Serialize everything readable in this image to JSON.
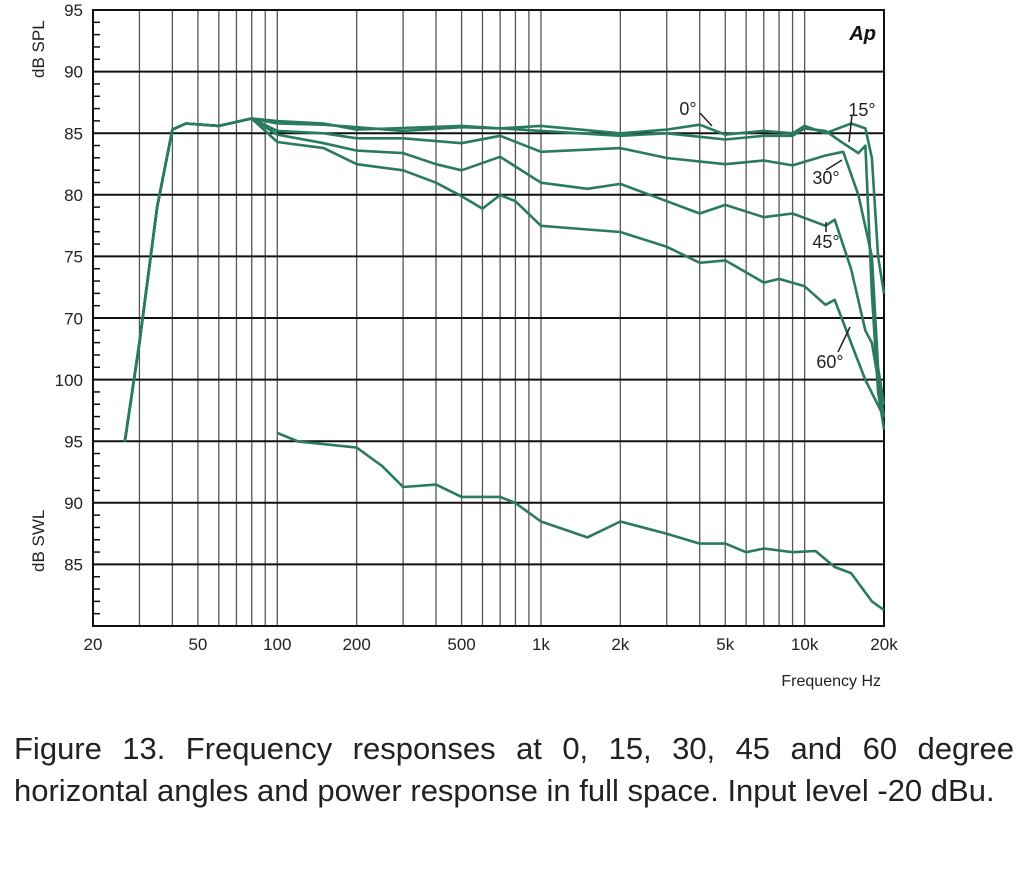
{
  "chart_data": {
    "type": "line",
    "logo": "Ap",
    "xlabel": "Frequency Hz",
    "x_scale": "log",
    "xlim": [
      20,
      20000
    ],
    "x_ticks": [
      {
        "v": 20,
        "label": "20"
      },
      {
        "v": 50,
        "label": "50"
      },
      {
        "v": 100,
        "label": "100"
      },
      {
        "v": 200,
        "label": "200"
      },
      {
        "v": 500,
        "label": "500"
      },
      {
        "v": 1000,
        "label": "1k"
      },
      {
        "v": 2000,
        "label": "2k"
      },
      {
        "v": 5000,
        "label": "5k"
      },
      {
        "v": 10000,
        "label": "10k"
      },
      {
        "v": 20000,
        "label": "20k"
      }
    ],
    "y_upper": {
      "label": "dB SPL",
      "range": [
        65,
        95
      ],
      "ticks": [
        {
          "v": 95,
          "label": "95"
        },
        {
          "v": 90,
          "label": "90"
        },
        {
          "v": 85,
          "label": "85"
        },
        {
          "v": 80,
          "label": "80"
        },
        {
          "v": 75,
          "label": "75"
        },
        {
          "v": 70,
          "label": "70"
        }
      ]
    },
    "y_lower": {
      "label": "dB SWL",
      "range": [
        80,
        100
      ],
      "ticks": [
        {
          "v": 100,
          "label": "100"
        },
        {
          "v": 95,
          "label": "95"
        },
        {
          "v": 90,
          "label": "90"
        },
        {
          "v": 85,
          "label": "85"
        }
      ]
    },
    "grid": true,
    "line_color": "#2a7a62",
    "series": [
      {
        "name": "0°",
        "axis": "upper",
        "x": [
          26.4,
          30,
          35,
          40,
          45,
          60,
          80,
          100,
          150,
          200,
          300,
          500,
          700,
          1000,
          2000,
          3000,
          4000,
          5000,
          7000,
          9000,
          10000,
          12000,
          15000,
          17000,
          18000,
          19000,
          20000
        ],
        "y": [
          60,
          68,
          79,
          85.3,
          85.8,
          85.6,
          86.2,
          85.8,
          85.7,
          85.5,
          85.2,
          85.5,
          85.4,
          85.6,
          85.0,
          85.3,
          85.7,
          84.9,
          85.2,
          85.0,
          85.6,
          85.0,
          85.8,
          85.4,
          83,
          75,
          72
        ]
      },
      {
        "name": "15°",
        "axis": "upper",
        "x": [
          26.4,
          30,
          35,
          40,
          45,
          60,
          80,
          100,
          150,
          200,
          500,
          1000,
          2000,
          3000,
          5000,
          7000,
          9000,
          10000,
          12000,
          14000,
          16000,
          17000,
          18000,
          19000,
          20000
        ],
        "y": [
          60,
          68,
          79,
          85.3,
          85.8,
          85.6,
          86.2,
          86.0,
          85.8,
          85.3,
          85.6,
          85.2,
          84.8,
          85.0,
          84.5,
          84.8,
          84.8,
          85.4,
          85.2,
          84.2,
          83.4,
          84,
          72,
          64,
          61
        ]
      },
      {
        "name": "30°",
        "axis": "upper",
        "x": [
          26.4,
          30,
          35,
          40,
          45,
          60,
          80,
          100,
          150,
          200,
          300,
          500,
          700,
          1000,
          2000,
          3000,
          5000,
          7000,
          9000,
          12000,
          14000,
          16000,
          18000,
          19000,
          20000
        ],
        "y": [
          60,
          68,
          79,
          85.3,
          85.8,
          85.6,
          86.2,
          85.2,
          85.0,
          84.6,
          84.6,
          84.2,
          84.8,
          83.5,
          83.8,
          83.0,
          82.5,
          82.8,
          82.4,
          83.2,
          83.5,
          80,
          75,
          66,
          63
        ]
      },
      {
        "name": "45°",
        "axis": "upper",
        "x": [
          26.4,
          30,
          35,
          40,
          45,
          60,
          80,
          100,
          150,
          200,
          300,
          400,
          500,
          700,
          1000,
          1500,
          2000,
          3000,
          4000,
          5000,
          7000,
          9000,
          12000,
          13000,
          15000,
          17000,
          18000,
          19000,
          20000
        ],
        "y": [
          60,
          68,
          79,
          85.3,
          85.8,
          85.6,
          86.2,
          84.9,
          84.2,
          83.6,
          83.4,
          82.5,
          82.0,
          83.1,
          81.0,
          80.5,
          80.9,
          79.5,
          78.5,
          79.2,
          78.2,
          78.5,
          77.5,
          78,
          74,
          69,
          68,
          65,
          62
        ]
      },
      {
        "name": "60°",
        "axis": "upper",
        "x": [
          26.4,
          30,
          35,
          40,
          45,
          60,
          80,
          100,
          150,
          200,
          300,
          400,
          500,
          600,
          700,
          800,
          1000,
          1500,
          2000,
          3000,
          4000,
          5000,
          7000,
          8000,
          10000,
          12000,
          13000,
          15000,
          17000,
          20000
        ],
        "y": [
          60,
          68,
          79,
          85.3,
          85.8,
          85.6,
          86.2,
          84.3,
          83.8,
          82.5,
          82.0,
          81.0,
          79.9,
          78.9,
          80.0,
          79.5,
          77.5,
          77.2,
          77.0,
          75.8,
          74.5,
          74.7,
          72.9,
          73.2,
          72.6,
          71.1,
          71.5,
          68,
          65,
          62
        ]
      },
      {
        "name": "Power response",
        "axis": "lower",
        "x": [
          100,
          120,
          200,
          250,
          300,
          400,
          500,
          700,
          800,
          1000,
          1500,
          2000,
          3000,
          4000,
          5000,
          6000,
          7000,
          9000,
          11000,
          13000,
          15000,
          18000,
          20000
        ],
        "y": [
          95.7,
          95.0,
          94.5,
          93,
          91.3,
          91.5,
          90.5,
          90.5,
          90.0,
          88.5,
          87.2,
          88.5,
          87.5,
          86.7,
          86.7,
          86.0,
          86.3,
          86.0,
          86.1,
          84.8,
          84.3,
          82,
          81.3
        ]
      }
    ]
  },
  "caption": "Figure 13. Frequency responses at 0, 15, 30, 45 and 60 degree horizontal angles and power response in full space. Input level -20 dBu."
}
